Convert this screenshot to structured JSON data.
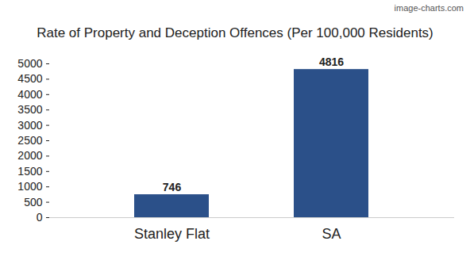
{
  "chart_data": {
    "type": "bar",
    "title": "Rate of Property and Deception Offences (Per 100,000 Residents)",
    "annotations": [
      "image-charts.com"
    ],
    "categories": [
      "Stanley Flat",
      "SA"
    ],
    "values": [
      746,
      4816
    ],
    "color": "#2b5089",
    "ylim": [
      0,
      5000
    ],
    "yticks": [
      0,
      500,
      1000,
      1500,
      2000,
      2500,
      3000,
      3500,
      4000,
      4500,
      5000
    ],
    "grid": false,
    "data_labels": true
  }
}
